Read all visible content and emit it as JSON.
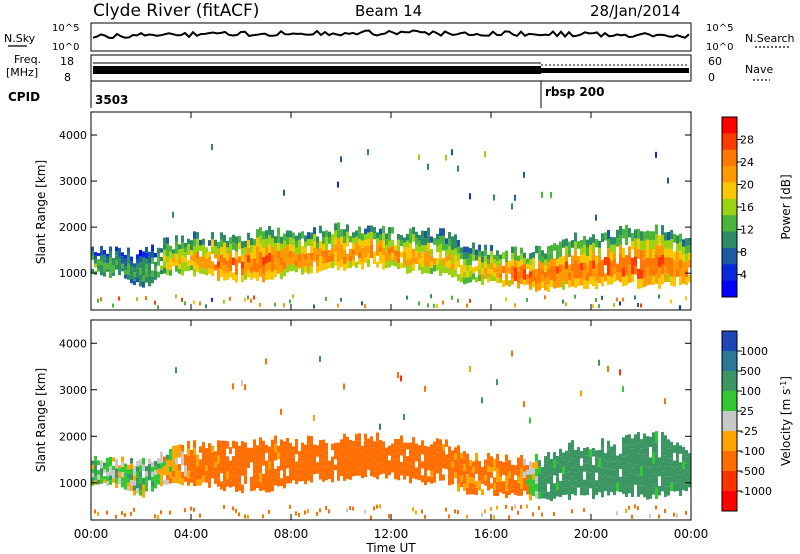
{
  "header": {
    "station": "Clyde River (fitACF)",
    "beam": "Beam 14",
    "date": "28/Jan/2014"
  },
  "noise_panel": {
    "left_label": "N.Sky",
    "right_label": "N.Search",
    "ticks_left": [
      "10^5",
      "10^0"
    ],
    "ticks_right": [
      "10^5",
      "10^0"
    ]
  },
  "freq_panel": {
    "left_label_lines": [
      "Freq.",
      "[MHz]"
    ],
    "right_label": "Nave",
    "ticks_left": [
      "18",
      "8"
    ],
    "ticks_right": [
      "60",
      "0"
    ]
  },
  "cpid": {
    "label": "CPID",
    "segments": [
      {
        "text": "3503",
        "start_hour": 0
      },
      {
        "text": "rbsp 200",
        "start_hour": 18
      }
    ]
  },
  "x_axis": {
    "ticks": [
      "00:00",
      "04:00",
      "08:00",
      "12:00",
      "16:00",
      "20:00",
      "00:00"
    ],
    "label": "Time UT",
    "range_hours": [
      0,
      24
    ]
  },
  "power_colorbar": {
    "label": "Power [dB]",
    "ticks": [
      "28",
      "24",
      "20",
      "16",
      "12",
      "8",
      "4"
    ],
    "colors": [
      "#ff0000",
      "#ff3c00",
      "#ff7800",
      "#ff9b00",
      "#fac800",
      "#9bd214",
      "#4bb43c",
      "#2d8c64",
      "#1e5aa0",
      "#0a28dc",
      "#0000ff"
    ]
  },
  "velocity_colorbar": {
    "label": "Velocity [m s^-1]",
    "ticks": [
      "1000",
      "500",
      "100",
      "25",
      "-25",
      "-100",
      "-500",
      "-1000"
    ],
    "colors": [
      "#1e46b4",
      "#2d7896",
      "#3c9664",
      "#32c832",
      "#c8c8c8",
      "#ffa500",
      "#ff6e00",
      "#ff3200",
      "#ff0000"
    ]
  },
  "chart_data": [
    {
      "type": "heatmap",
      "title": "Power",
      "xlabel": "Time UT",
      "ylabel": "Slant Range [km]",
      "xlim": [
        0,
        24
      ],
      "ylim": [
        200,
        4500
      ],
      "yticks": [
        1000,
        2000,
        3000,
        4000
      ],
      "colorbar_label": "Power [dB]",
      "colorbar_range": [
        0,
        30
      ],
      "echo_band": {
        "hours": [
          0,
          1,
          2,
          3,
          4,
          5,
          6,
          7,
          8,
          9,
          10,
          11,
          12,
          13,
          14,
          15,
          16,
          17,
          18,
          19,
          20,
          21,
          22,
          23,
          24
        ],
        "lower_km": [
          1000,
          950,
          700,
          1000,
          1000,
          900,
          850,
          850,
          1000,
          1050,
          1100,
          1150,
          1150,
          1000,
          1000,
          800,
          800,
          700,
          650,
          700,
          700,
          800,
          700,
          750,
          800
        ],
        "upper_km": [
          1500,
          1500,
          1400,
          1700,
          1800,
          1800,
          1800,
          1900,
          1900,
          1900,
          2000,
          2000,
          1900,
          1900,
          1900,
          1600,
          1500,
          1500,
          1500,
          1800,
          1800,
          1900,
          2000,
          2000,
          1600
        ],
        "peak_power_db": [
          14,
          12,
          10,
          18,
          22,
          26,
          26,
          26,
          24,
          24,
          24,
          24,
          24,
          22,
          20,
          18,
          22,
          28,
          26,
          26,
          26,
          26,
          28,
          26,
          24
        ]
      }
    },
    {
      "type": "heatmap",
      "title": "Velocity",
      "xlabel": "Time UT",
      "ylabel": "Slant Range [km]",
      "xlim": [
        0,
        24
      ],
      "ylim": [
        200,
        4500
      ],
      "yticks": [
        1000,
        2000,
        3000,
        4000
      ],
      "colorbar_label": "Velocity [m s^-1]",
      "colorbar_range": [
        -1000,
        1000
      ],
      "echo_band": {
        "hours": [
          0,
          1,
          2,
          3,
          4,
          5,
          6,
          7,
          8,
          9,
          10,
          11,
          12,
          13,
          14,
          15,
          16,
          17,
          18,
          19,
          20,
          21,
          22,
          23,
          24
        ],
        "typical_velocity_ms": [
          50,
          50,
          50,
          0,
          -150,
          -200,
          -200,
          -200,
          -200,
          -200,
          -250,
          -250,
          -250,
          -200,
          -200,
          -150,
          -150,
          -200,
          150,
          200,
          200,
          200,
          200,
          200,
          200
        ]
      }
    }
  ]
}
